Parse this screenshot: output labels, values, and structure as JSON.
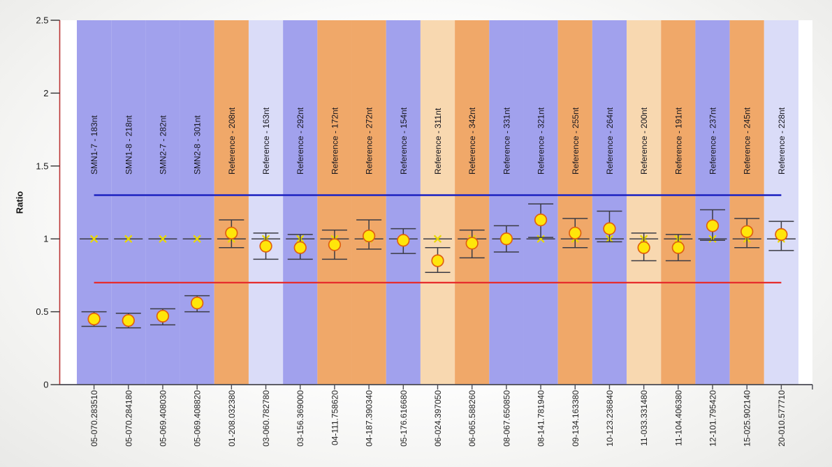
{
  "chart_data": {
    "type": "scatter",
    "title": "",
    "ylabel": "Ratio",
    "ylim": [
      0,
      2.5
    ],
    "y_ticks": [
      2.5,
      2,
      1.5,
      1,
      0.5,
      0
    ],
    "grid": false,
    "legend": "none",
    "expected_ratio": 1.0,
    "thresholds": {
      "upper": 1.3,
      "lower": 0.7
    },
    "colors": {
      "band_blue": "#a1a1ed",
      "band_lavender": "#dadcf8",
      "band_orange": "#f0a869",
      "band_peach": "#f8d8b0",
      "upper_threshold": "#2228c2",
      "lower_threshold": "#e62b2b",
      "y_axis": "#bb3333",
      "x_axis": "#4a4a52",
      "error_bar": "#3b3b44",
      "point_fill": "#ffe60a",
      "point_stroke": "#e06010",
      "expected_marker": "#e8d805",
      "label_text": "#16161e",
      "plot_background": "#ffffff"
    },
    "columns": [
      {
        "sample": "05-070.283510",
        "probe": "SMN1-7 - 183nt",
        "band": "blue",
        "value": 0.45,
        "err_low": 0.4,
        "err_high": 0.5
      },
      {
        "sample": "05-070.284180",
        "probe": "SMN1-8 - 218nt",
        "band": "blue",
        "value": 0.44,
        "err_low": 0.39,
        "err_high": 0.49
      },
      {
        "sample": "05-069.408030",
        "probe": "SMN2-7 - 282nt",
        "band": "blue",
        "value": 0.47,
        "err_low": 0.41,
        "err_high": 0.52
      },
      {
        "sample": "05-069.408820",
        "probe": "SMN2-8 - 301nt",
        "band": "blue",
        "value": 0.56,
        "err_low": 0.5,
        "err_high": 0.61
      },
      {
        "sample": "01-208.032380",
        "probe": "Reference - 208nt",
        "band": "orange",
        "value": 1.04,
        "err_low": 0.94,
        "err_high": 1.13
      },
      {
        "sample": "03-060.782780",
        "probe": "Reference - 163nt",
        "band": "lavender",
        "value": 0.95,
        "err_low": 0.86,
        "err_high": 1.04
      },
      {
        "sample": "03-156.369000",
        "probe": "Reference - 292nt",
        "band": "blue",
        "value": 0.94,
        "err_low": 0.86,
        "err_high": 1.03
      },
      {
        "sample": "04-111.758620",
        "probe": "Reference - 172nt",
        "band": "orange",
        "value": 0.96,
        "err_low": 0.86,
        "err_high": 1.06
      },
      {
        "sample": "04-187.390340",
        "probe": "Reference - 272nt",
        "band": "orange",
        "value": 1.02,
        "err_low": 0.93,
        "err_high": 1.13
      },
      {
        "sample": "05-176.616680",
        "probe": "Reference - 154nt",
        "band": "blue",
        "value": 0.99,
        "err_low": 0.9,
        "err_high": 1.07
      },
      {
        "sample": "06-024.397050",
        "probe": "Reference - 311nt",
        "band": "peach",
        "value": 0.85,
        "err_low": 0.77,
        "err_high": 0.94
      },
      {
        "sample": "06-065.588260",
        "probe": "Reference - 342nt",
        "band": "orange",
        "value": 0.97,
        "err_low": 0.87,
        "err_high": 1.06
      },
      {
        "sample": "08-067.650850",
        "probe": "Reference - 331nt",
        "band": "blue",
        "value": 1.0,
        "err_low": 0.91,
        "err_high": 1.09
      },
      {
        "sample": "08-141.781940",
        "probe": "Reference - 321nt",
        "band": "blue",
        "value": 1.13,
        "err_low": 1.01,
        "err_high": 1.24
      },
      {
        "sample": "09-134.163380",
        "probe": "Reference - 255nt",
        "band": "orange",
        "value": 1.04,
        "err_low": 0.94,
        "err_high": 1.14
      },
      {
        "sample": "10-123.236840",
        "probe": "Reference - 264nt",
        "band": "blue",
        "value": 1.07,
        "err_low": 0.98,
        "err_high": 1.19
      },
      {
        "sample": "11-033.331480",
        "probe": "Reference - 200nt",
        "band": "peach",
        "value": 0.94,
        "err_low": 0.85,
        "err_high": 1.04
      },
      {
        "sample": "11-104.406380",
        "probe": "Reference - 191nt",
        "band": "orange",
        "value": 0.94,
        "err_low": 0.85,
        "err_high": 1.03
      },
      {
        "sample": "12-101.795420",
        "probe": "Reference - 237nt",
        "band": "blue",
        "value": 1.09,
        "err_low": 0.99,
        "err_high": 1.2
      },
      {
        "sample": "15-025.902140",
        "probe": "Reference - 245nt",
        "band": "orange",
        "value": 1.05,
        "err_low": 0.94,
        "err_high": 1.14
      },
      {
        "sample": "20-010.577710",
        "probe": "Reference - 228nt",
        "band": "lavender",
        "value": 1.03,
        "err_low": 0.92,
        "err_high": 1.12
      }
    ]
  }
}
